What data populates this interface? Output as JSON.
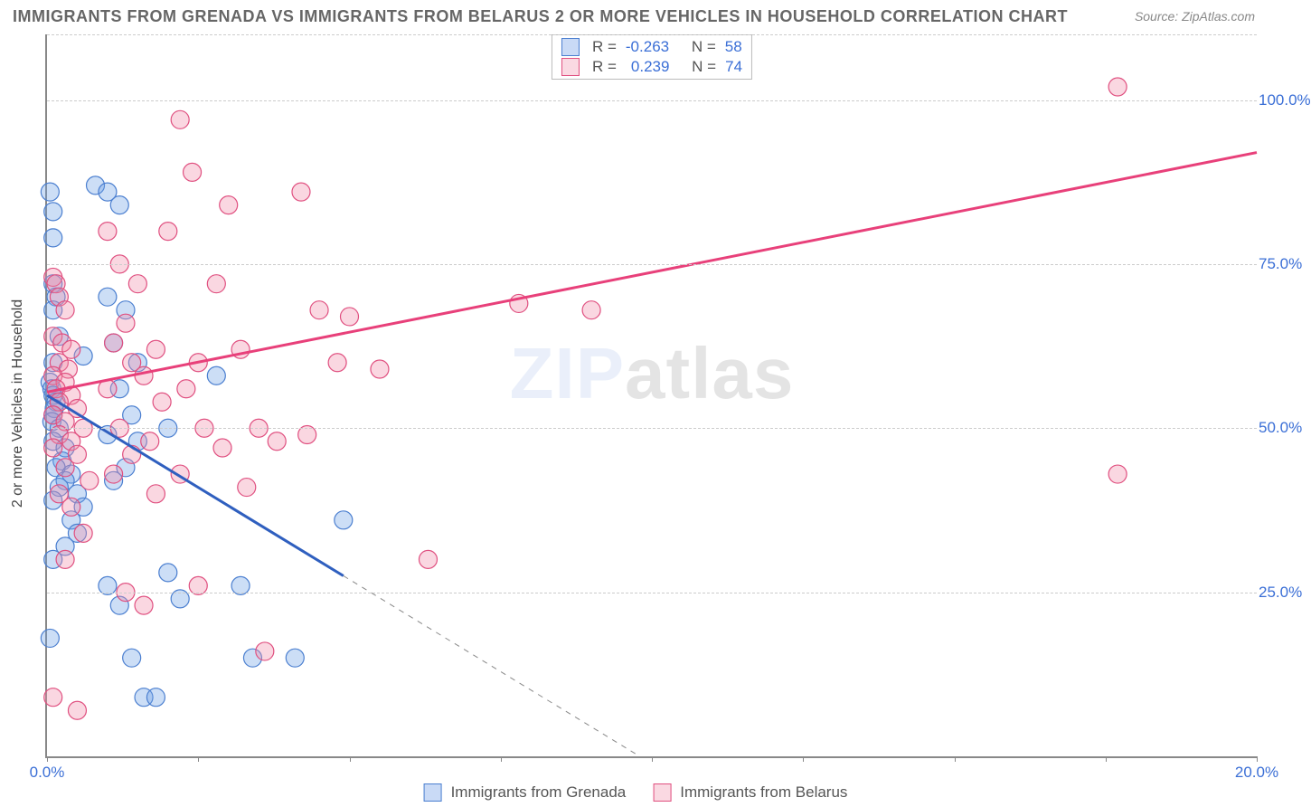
{
  "title": "IMMIGRANTS FROM GRENADA VS IMMIGRANTS FROM BELARUS 2 OR MORE VEHICLES IN HOUSEHOLD CORRELATION CHART",
  "source": "Source: ZipAtlas.com",
  "watermark_zip": "ZIP",
  "watermark_atlas": "atlas",
  "y_axis_label": "2 or more Vehicles in Household",
  "chart": {
    "type": "scatter",
    "background_color": "#ffffff",
    "grid_color": "#cccccc",
    "axis_color": "#888888",
    "xlim": [
      0,
      20
    ],
    "ylim": [
      0,
      110
    ],
    "x_ticks": [
      0,
      2.5,
      5,
      7.5,
      10,
      12.5,
      15,
      17.5,
      20
    ],
    "x_tick_labels": {
      "0": "0.0%",
      "20": "20.0%"
    },
    "y_ticks": [
      25,
      50,
      75,
      100
    ],
    "y_tick_labels": {
      "25": "25.0%",
      "50": "50.0%",
      "75": "75.0%",
      "100": "100.0%"
    },
    "marker_radius": 10,
    "marker_opacity": 0.5,
    "line_width": 3,
    "series": [
      {
        "name": "Immigrants from Grenada",
        "color_fill": "rgba(110,160,230,0.35)",
        "color_stroke": "#4b7fd0",
        "line_color": "#2f5fbf",
        "R": "-0.263",
        "N": "58",
        "trend": {
          "x1": 0,
          "y1": 55,
          "x2": 4.9,
          "y2": 27.5
        },
        "trend_dash": {
          "x1": 4.9,
          "y1": 27.5,
          "x2": 9.8,
          "y2": 0
        },
        "points": [
          [
            0.05,
            86
          ],
          [
            0.1,
            83
          ],
          [
            0.1,
            79
          ],
          [
            0.1,
            72
          ],
          [
            0.15,
            70
          ],
          [
            0.1,
            68
          ],
          [
            0.2,
            64
          ],
          [
            0.1,
            60
          ],
          [
            0.05,
            57
          ],
          [
            0.08,
            56
          ],
          [
            0.1,
            55
          ],
          [
            0.15,
            54
          ],
          [
            0.12,
            53
          ],
          [
            0.1,
            52
          ],
          [
            0.08,
            51
          ],
          [
            0.2,
            50
          ],
          [
            0.1,
            48
          ],
          [
            0.3,
            47
          ],
          [
            0.25,
            45
          ],
          [
            0.15,
            44
          ],
          [
            0.4,
            43
          ],
          [
            0.3,
            42
          ],
          [
            0.2,
            41
          ],
          [
            0.5,
            40
          ],
          [
            0.1,
            39
          ],
          [
            0.6,
            38
          ],
          [
            0.4,
            36
          ],
          [
            0.5,
            34
          ],
          [
            0.3,
            32
          ],
          [
            0.1,
            30
          ],
          [
            0.05,
            18
          ],
          [
            0.6,
            61
          ],
          [
            0.8,
            87
          ],
          [
            1.0,
            86
          ],
          [
            1.2,
            84
          ],
          [
            1.0,
            70
          ],
          [
            1.3,
            68
          ],
          [
            1.1,
            63
          ],
          [
            1.5,
            60
          ],
          [
            1.2,
            56
          ],
          [
            1.4,
            52
          ],
          [
            1.0,
            49
          ],
          [
            1.5,
            48
          ],
          [
            1.3,
            44
          ],
          [
            1.1,
            42
          ],
          [
            1.0,
            26
          ],
          [
            1.2,
            23
          ],
          [
            1.4,
            15
          ],
          [
            1.6,
            9
          ],
          [
            1.8,
            9
          ],
          [
            2.0,
            50
          ],
          [
            2.0,
            28
          ],
          [
            2.2,
            24
          ],
          [
            2.8,
            58
          ],
          [
            3.2,
            26
          ],
          [
            3.4,
            15
          ],
          [
            4.1,
            15
          ],
          [
            4.9,
            36
          ]
        ]
      },
      {
        "name": "Immigrants from Belarus",
        "color_fill": "rgba(240,140,170,0.35)",
        "color_stroke": "#e05080",
        "line_color": "#e8407a",
        "R": "0.239",
        "N": "74",
        "trend": {
          "x1": 0,
          "y1": 55.5,
          "x2": 20,
          "y2": 92
        },
        "points": [
          [
            0.1,
            73
          ],
          [
            0.15,
            72
          ],
          [
            0.2,
            70
          ],
          [
            0.3,
            68
          ],
          [
            0.1,
            64
          ],
          [
            0.25,
            63
          ],
          [
            0.4,
            62
          ],
          [
            0.2,
            60
          ],
          [
            0.35,
            59
          ],
          [
            0.1,
            58
          ],
          [
            0.3,
            57
          ],
          [
            0.15,
            56
          ],
          [
            0.4,
            55
          ],
          [
            0.2,
            54
          ],
          [
            0.5,
            53
          ],
          [
            0.1,
            52
          ],
          [
            0.3,
            51
          ],
          [
            0.6,
            50
          ],
          [
            0.2,
            49
          ],
          [
            0.4,
            48
          ],
          [
            0.1,
            47
          ],
          [
            0.5,
            46
          ],
          [
            0.3,
            44
          ],
          [
            0.7,
            42
          ],
          [
            0.2,
            40
          ],
          [
            0.4,
            38
          ],
          [
            0.6,
            34
          ],
          [
            0.3,
            30
          ],
          [
            0.1,
            9
          ],
          [
            0.5,
            7
          ],
          [
            1.0,
            80
          ],
          [
            1.2,
            75
          ],
          [
            1.5,
            72
          ],
          [
            1.3,
            66
          ],
          [
            1.1,
            63
          ],
          [
            1.8,
            62
          ],
          [
            1.4,
            60
          ],
          [
            1.6,
            58
          ],
          [
            1.0,
            56
          ],
          [
            1.9,
            54
          ],
          [
            1.2,
            50
          ],
          [
            1.7,
            48
          ],
          [
            1.4,
            46
          ],
          [
            1.1,
            43
          ],
          [
            1.8,
            40
          ],
          [
            1.3,
            25
          ],
          [
            1.6,
            23
          ],
          [
            2.2,
            97
          ],
          [
            2.4,
            89
          ],
          [
            2.0,
            80
          ],
          [
            2.8,
            72
          ],
          [
            2.5,
            60
          ],
          [
            2.3,
            56
          ],
          [
            2.6,
            50
          ],
          [
            2.9,
            47
          ],
          [
            2.2,
            43
          ],
          [
            2.5,
            26
          ],
          [
            3.0,
            84
          ],
          [
            3.2,
            62
          ],
          [
            3.5,
            50
          ],
          [
            3.8,
            48
          ],
          [
            3.3,
            41
          ],
          [
            3.6,
            16
          ],
          [
            4.2,
            86
          ],
          [
            4.5,
            68
          ],
          [
            4.8,
            60
          ],
          [
            4.3,
            49
          ],
          [
            5.0,
            67
          ],
          [
            5.5,
            59
          ],
          [
            6.3,
            30
          ],
          [
            7.8,
            69
          ],
          [
            9.0,
            68
          ],
          [
            17.7,
            102
          ],
          [
            17.7,
            43
          ]
        ]
      }
    ]
  },
  "stats_labels": {
    "R": "R =",
    "N": "N ="
  },
  "x_label_color": "#3b6fd6",
  "y_label_color": "#3b6fd6"
}
